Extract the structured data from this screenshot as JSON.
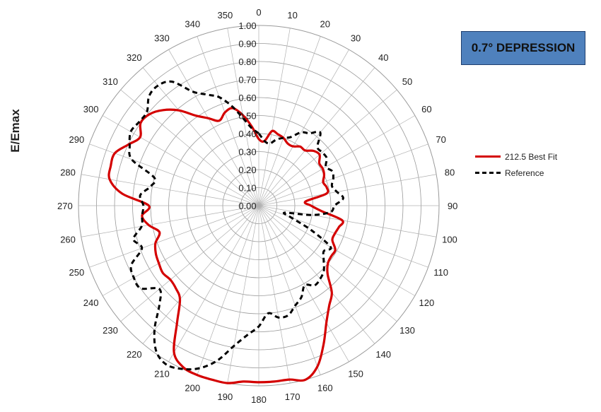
{
  "title": "0.7° DEPRESSION",
  "ylabel": "E/Emax",
  "chart_data": {
    "type": "polar-line",
    "r_ticks": [
      "0.00",
      "0.10",
      "0.20",
      "0.30",
      "0.40",
      "0.50",
      "0.60",
      "0.70",
      "0.80",
      "0.90",
      "1.00"
    ],
    "r_max": 1.0,
    "angle_ticks": [
      "0",
      "10",
      "20",
      "30",
      "40",
      "50",
      "60",
      "70",
      "80",
      "90",
      "100",
      "110",
      "120",
      "130",
      "140",
      "150",
      "160",
      "170",
      "180",
      "190",
      "200",
      "210",
      "220",
      "230",
      "240",
      "250",
      "260",
      "270",
      "280",
      "290",
      "300",
      "310",
      "320",
      "330",
      "340",
      "350"
    ],
    "angle_direction": "clockwise from top",
    "legend_position": "right",
    "series": [
      {
        "name": "212.5 Best Fit",
        "color": "#d40000",
        "style": "solid",
        "angles": [
          0,
          5,
          10,
          15,
          20,
          25,
          30,
          35,
          40,
          45,
          50,
          55,
          60,
          65,
          70,
          75,
          80,
          85,
          90,
          95,
          100,
          105,
          110,
          115,
          120,
          125,
          130,
          135,
          140,
          145,
          150,
          155,
          160,
          165,
          170,
          175,
          180,
          185,
          190,
          195,
          200,
          205,
          210,
          215,
          220,
          225,
          230,
          235,
          240,
          245,
          250,
          255,
          260,
          265,
          270,
          275,
          280,
          285,
          290,
          295,
          300,
          305,
          310,
          315,
          320,
          325,
          330,
          335,
          340,
          345,
          350,
          355
        ],
        "values": [
          0.37,
          0.36,
          0.42,
          0.41,
          0.4,
          0.38,
          0.38,
          0.4,
          0.4,
          0.43,
          0.44,
          0.41,
          0.41,
          0.4,
          0.38,
          0.39,
          0.38,
          0.26,
          0.29,
          0.35,
          0.47,
          0.46,
          0.45,
          0.45,
          0.49,
          0.49,
          0.5,
          0.54,
          0.63,
          0.68,
          0.75,
          0.85,
          0.95,
          1.0,
          0.98,
          0.98,
          0.98,
          0.98,
          1.0,
          1.0,
          1.0,
          0.99,
          0.94,
          0.79,
          0.68,
          0.65,
          0.64,
          0.65,
          0.64,
          0.63,
          0.61,
          0.57,
          0.62,
          0.65,
          0.61,
          0.76,
          0.84,
          0.85,
          0.85,
          0.8,
          0.76,
          0.8,
          0.79,
          0.75,
          0.69,
          0.61,
          0.56,
          0.52,
          0.55,
          0.56,
          0.51,
          0.44
        ]
      },
      {
        "name": "Reference",
        "color": "#000000",
        "style": "dashed",
        "angles": [
          0,
          5,
          10,
          15,
          20,
          25,
          30,
          35,
          40,
          45,
          50,
          55,
          60,
          65,
          70,
          75,
          80,
          85,
          90,
          95,
          100,
          105,
          110,
          115,
          120,
          125,
          130,
          135,
          140,
          145,
          150,
          155,
          160,
          165,
          170,
          175,
          180,
          185,
          190,
          195,
          200,
          205,
          210,
          215,
          220,
          225,
          230,
          235,
          240,
          245,
          250,
          255,
          260,
          265,
          270,
          275,
          280,
          285,
          290,
          295,
          300,
          305,
          310,
          315,
          320,
          325,
          330,
          335,
          340,
          345,
          350,
          355
        ],
        "values": [
          0.4,
          0.36,
          0.35,
          0.38,
          0.4,
          0.42,
          0.47,
          0.49,
          0.53,
          0.46,
          0.46,
          0.46,
          0.43,
          0.45,
          0.44,
          0.42,
          0.44,
          0.47,
          0.42,
          0.4,
          0.3,
          0.15,
          0.19,
          0.32,
          0.46,
          0.44,
          0.47,
          0.51,
          0.53,
          0.54,
          0.51,
          0.56,
          0.59,
          0.63,
          0.63,
          0.6,
          0.67,
          0.72,
          0.79,
          0.89,
          0.96,
          1.0,
          1.02,
          0.99,
          0.9,
          0.78,
          0.72,
          0.8,
          0.8,
          0.78,
          0.69,
          0.72,
          0.66,
          0.65,
          0.64,
          0.66,
          0.61,
          0.6,
          0.75,
          0.79,
          0.82,
          0.81,
          0.81,
          0.86,
          0.87,
          0.84,
          0.73,
          0.68,
          0.64,
          0.57,
          0.49,
          0.43
        ]
      }
    ]
  }
}
